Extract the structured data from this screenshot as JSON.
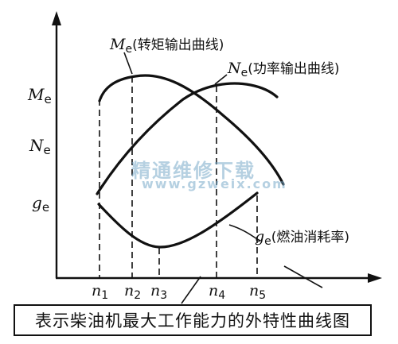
{
  "y_axis_labels": {
    "me": {
      "main": "M",
      "sub": "e"
    },
    "ne": {
      "main": "N",
      "sub": "e"
    },
    "ge": {
      "main": "g",
      "sub": "e"
    }
  },
  "x_axis_labels": [
    {
      "main": "n",
      "sub": "1"
    },
    {
      "main": "n",
      "sub": "2"
    },
    {
      "main": "n",
      "sub": "3"
    },
    {
      "main": "n",
      "sub": "4"
    },
    {
      "main": "n",
      "sub": "5"
    }
  ],
  "curve_labels": {
    "torque": {
      "main": "M",
      "sub": "e",
      "text": "(转矩输出曲线)"
    },
    "power": {
      "main": "N",
      "sub": "e",
      "text": "(功率输出曲线)"
    },
    "fuel": {
      "main": "g",
      "sub": "e",
      "text": "(燃油消耗率)"
    }
  },
  "caption": "表示柴油机最大工作能力的外特性曲线图",
  "watermark": {
    "cn": "精通维修下载",
    "url": "www.gzweix.com"
  }
}
